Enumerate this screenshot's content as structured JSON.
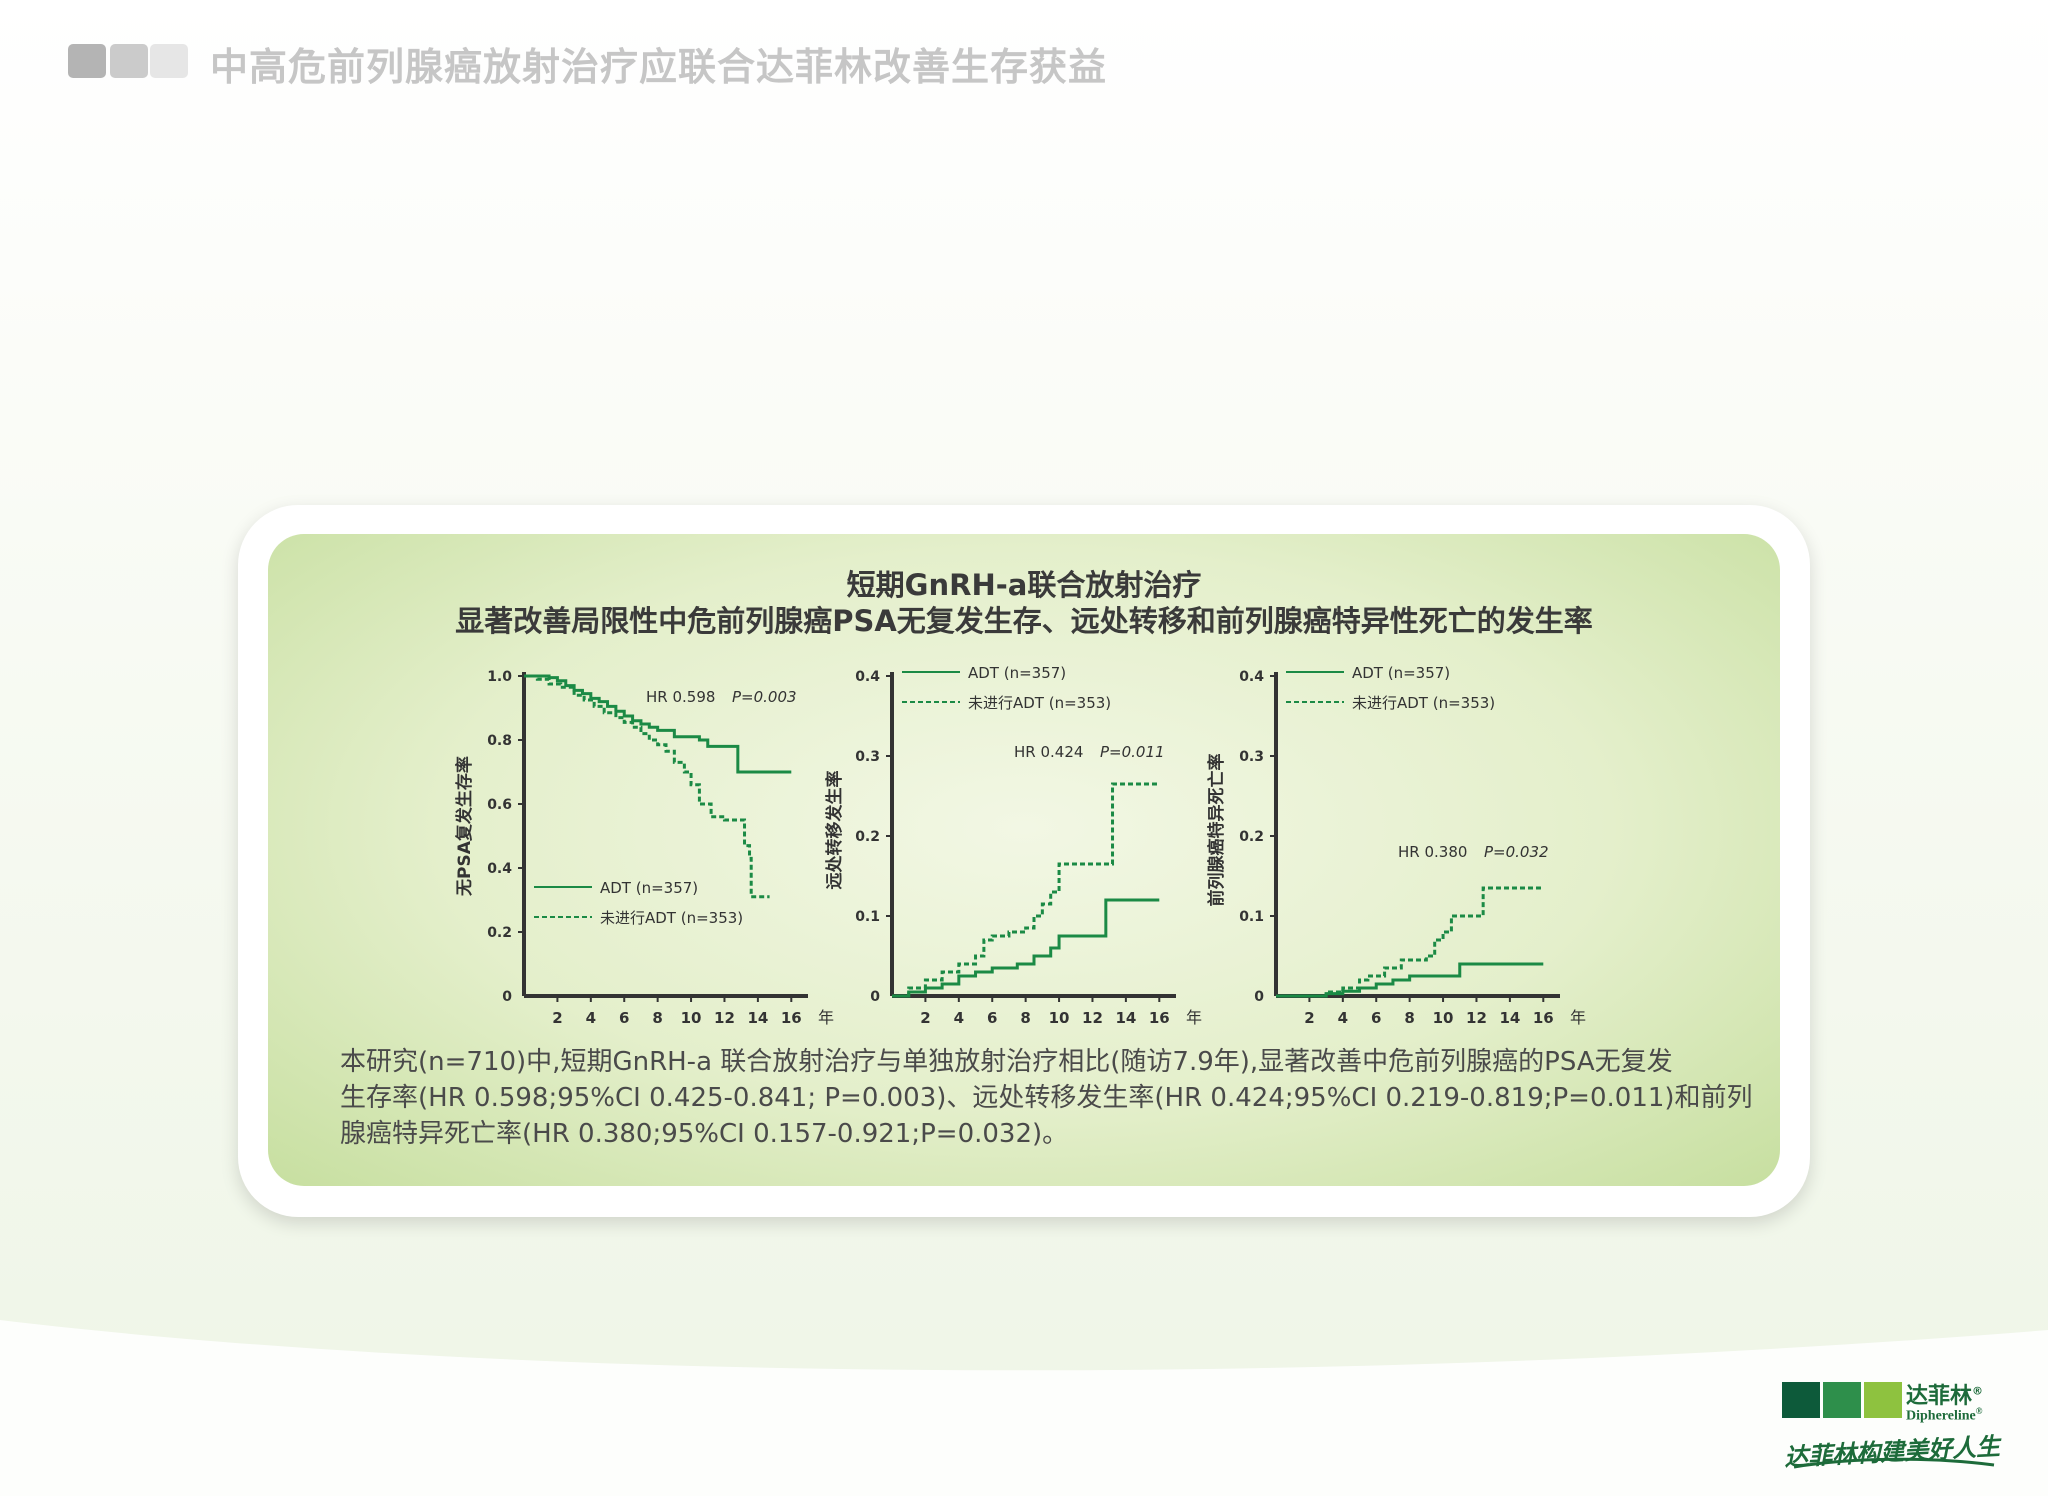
{
  "header": {
    "title": "中高危前列腺癌放射治疗应联合达菲林改善生存获益"
  },
  "card": {
    "title_line1": "短期GnRH-a联合放射治疗",
    "title_line2": "显著改善局限性中危前列腺癌PSA无复发生存、远处转移和前列腺癌特异性死亡的发生率",
    "summary_lines": [
      "本研究(n=710)中,短期GnRH-a 联合放射治疗与单独放射治疗相比(随访7.9年),显著改善中危前列腺癌的PSA无复发",
      "生存率(HR 0.598;95%CI 0.425-0.841; P=0.003)、远处转移发生率(HR 0.424;95%CI 0.219-0.819;P=0.011)和前列",
      "腺癌特异死亡率(HR 0.380;95%CI 0.157-0.921;P=0.032)。"
    ]
  },
  "logo": {
    "cn": "达菲林",
    "en": "Diphereline",
    "slogan": "达菲林构建美好人生",
    "reg": "®"
  },
  "colors": {
    "series": "#1b8a45",
    "axis": "#333333",
    "header_gray": "#c6c6c6",
    "card_bg": "#e4efcb"
  },
  "chart_data": [
    {
      "type": "line",
      "ylabel": "无PSA复发生存率",
      "xlabel": "年",
      "xticks": [
        2,
        4,
        6,
        8,
        10,
        12,
        14,
        16
      ],
      "yticks": [
        0,
        0.2,
        0.4,
        0.6,
        0.8,
        1.0
      ],
      "ytick_labels": [
        "0",
        "0.2",
        "0.4",
        "0.6",
        "0.8",
        "1.0"
      ],
      "xlim": [
        0,
        17
      ],
      "ylim": [
        0,
        1.0
      ],
      "annotation": {
        "hr": "HR 0.598",
        "p": "P=0.003"
      },
      "series": [
        {
          "name": "ADT (n=357)",
          "style": "solid",
          "points": [
            [
              0,
              1.0
            ],
            [
              1.5,
              0.995
            ],
            [
              2,
              0.985
            ],
            [
              2.5,
              0.97
            ],
            [
              3,
              0.955
            ],
            [
              3.5,
              0.945
            ],
            [
              4,
              0.93
            ],
            [
              4.5,
              0.92
            ],
            [
              5,
              0.905
            ],
            [
              5.5,
              0.89
            ],
            [
              6,
              0.875
            ],
            [
              6.5,
              0.86
            ],
            [
              7,
              0.85
            ],
            [
              7.5,
              0.84
            ],
            [
              8,
              0.83
            ],
            [
              9,
              0.81
            ],
            [
              10.5,
              0.8
            ],
            [
              11,
              0.78
            ],
            [
              12.5,
              0.78
            ],
            [
              12.8,
              0.7
            ],
            [
              16,
              0.7
            ]
          ]
        },
        {
          "name": "未进行ADT (n=353)",
          "style": "dashed",
          "points": [
            [
              0,
              1.0
            ],
            [
              0.8,
              0.99
            ],
            [
              1.5,
              0.975
            ],
            [
              2.2,
              0.965
            ],
            [
              3,
              0.94
            ],
            [
              3.6,
              0.925
            ],
            [
              4.2,
              0.905
            ],
            [
              4.8,
              0.885
            ],
            [
              5.5,
              0.87
            ],
            [
              6,
              0.855
            ],
            [
              6.5,
              0.84
            ],
            [
              7,
              0.82
            ],
            [
              7.5,
              0.8
            ],
            [
              8,
              0.785
            ],
            [
              8.5,
              0.765
            ],
            [
              9,
              0.73
            ],
            [
              9.6,
              0.7
            ],
            [
              10,
              0.66
            ],
            [
              10.5,
              0.6
            ],
            [
              11.2,
              0.56
            ],
            [
              12,
              0.55
            ],
            [
              13,
              0.55
            ],
            [
              13.2,
              0.47
            ],
            [
              13.5,
              0.43
            ],
            [
              13.6,
              0.31
            ],
            [
              14.7,
              0.31
            ]
          ]
        }
      ]
    },
    {
      "type": "line",
      "ylabel": "远处转移发生率",
      "xlabel": "年",
      "xticks": [
        2,
        4,
        6,
        8,
        10,
        12,
        14,
        16
      ],
      "yticks": [
        0,
        0.1,
        0.2,
        0.3,
        0.4
      ],
      "ytick_labels": [
        "0",
        "0.1",
        "0.2",
        "0.3",
        "0.4"
      ],
      "xlim": [
        0,
        17
      ],
      "ylim": [
        0,
        0.4
      ],
      "annotation": {
        "hr": "HR 0.424",
        "p": "P=0.011"
      },
      "series": [
        {
          "name": "ADT (n=357)",
          "style": "solid",
          "points": [
            [
              0,
              0
            ],
            [
              1,
              0.005
            ],
            [
              2,
              0.01
            ],
            [
              3,
              0.015
            ],
            [
              4,
              0.025
            ],
            [
              5,
              0.03
            ],
            [
              6,
              0.035
            ],
            [
              7.5,
              0.04
            ],
            [
              8.5,
              0.05
            ],
            [
              9.5,
              0.06
            ],
            [
              10,
              0.075
            ],
            [
              12.5,
              0.075
            ],
            [
              12.8,
              0.12
            ],
            [
              16,
              0.12
            ]
          ]
        },
        {
          "name": "未进行ADT (n=353)",
          "style": "dashed",
          "points": [
            [
              0,
              0
            ],
            [
              1,
              0.01
            ],
            [
              2,
              0.02
            ],
            [
              3,
              0.03
            ],
            [
              4,
              0.04
            ],
            [
              5,
              0.05
            ],
            [
              5.5,
              0.07
            ],
            [
              6,
              0.075
            ],
            [
              7,
              0.08
            ],
            [
              8,
              0.085
            ],
            [
              8.5,
              0.1
            ],
            [
              9,
              0.115
            ],
            [
              9.5,
              0.13
            ],
            [
              10,
              0.165
            ],
            [
              12.5,
              0.165
            ],
            [
              13.2,
              0.265
            ],
            [
              16,
              0.265
            ]
          ]
        }
      ]
    },
    {
      "type": "line",
      "ylabel": "前列腺癌特异死亡率",
      "xlabel": "年",
      "xticks": [
        2,
        4,
        6,
        8,
        10,
        12,
        14,
        16
      ],
      "yticks": [
        0,
        0.1,
        0.2,
        0.3,
        0.4
      ],
      "ytick_labels": [
        "0",
        "0.1",
        "0.2",
        "0.3",
        "0.4"
      ],
      "xlim": [
        0,
        17
      ],
      "ylim": [
        0,
        0.4
      ],
      "annotation": {
        "hr": "HR 0.380",
        "p": "P=0.032"
      },
      "series": [
        {
          "name": "ADT (n=357)",
          "style": "solid",
          "points": [
            [
              0,
              0
            ],
            [
              3,
              0.003
            ],
            [
              4,
              0.006
            ],
            [
              5,
              0.01
            ],
            [
              6,
              0.015
            ],
            [
              7,
              0.02
            ],
            [
              8,
              0.025
            ],
            [
              10.5,
              0.025
            ],
            [
              11,
              0.04
            ],
            [
              16,
              0.04
            ]
          ]
        },
        {
          "name": "未进行ADT (n=353)",
          "style": "dashed",
          "points": [
            [
              0,
              0
            ],
            [
              3,
              0.005
            ],
            [
              4,
              0.01
            ],
            [
              5,
              0.02
            ],
            [
              5.5,
              0.025
            ],
            [
              6.5,
              0.035
            ],
            [
              7.5,
              0.045
            ],
            [
              9,
              0.05
            ],
            [
              9.5,
              0.07
            ],
            [
              10,
              0.08
            ],
            [
              10.5,
              0.1
            ],
            [
              12,
              0.1
            ],
            [
              12.4,
              0.135
            ],
            [
              16,
              0.135
            ]
          ]
        }
      ]
    }
  ]
}
